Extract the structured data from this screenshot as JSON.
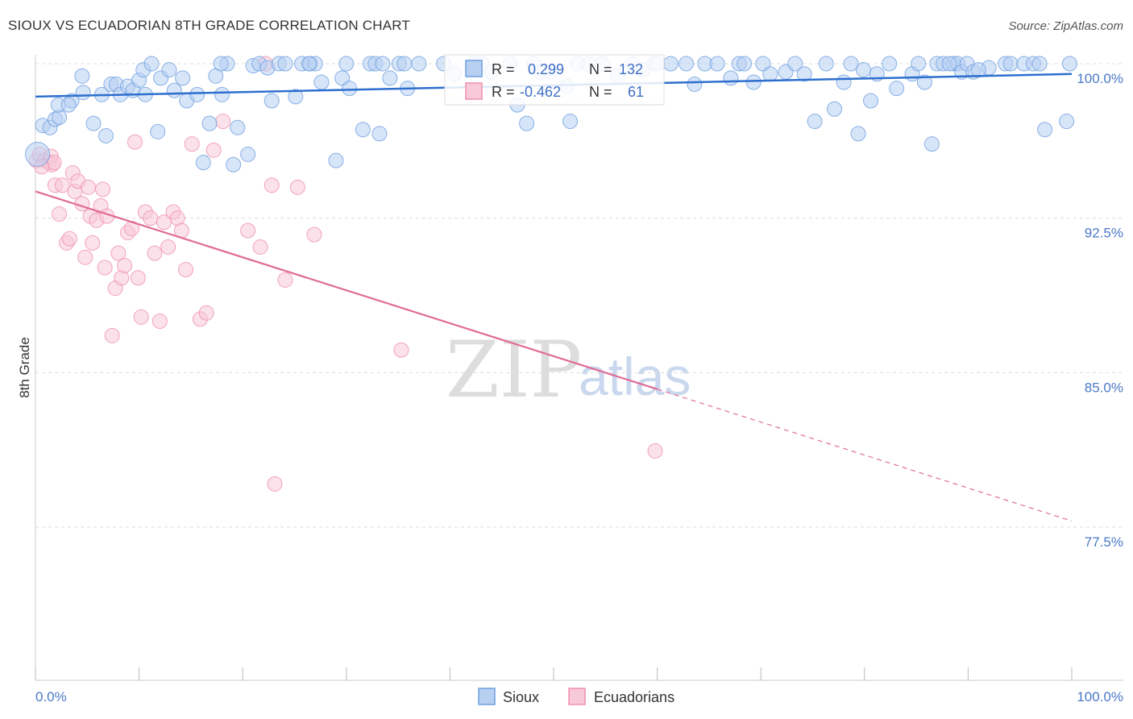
{
  "title": "SIOUX VS ECUADORIAN 8TH GRADE CORRELATION CHART",
  "source": "Source: ZipAtlas.com",
  "watermark": {
    "zip": "ZIP",
    "atlas": "atlas"
  },
  "colors": {
    "sioux": "#6f9fe0",
    "sioux_line": "#2e6fce",
    "ecuadorians": "#ef8fae",
    "ecuadorians_line": "#e06b97",
    "tick": "#4a78c7",
    "grid": "#dddddd"
  },
  "legend_box": {
    "rows": [
      {
        "r_label": "R =",
        "r_value": "0.299",
        "n_label": "N =",
        "n_value": "132"
      },
      {
        "r_label": "R =",
        "r_value": "-0.462",
        "n_label": "N =",
        "n_value": "61"
      }
    ]
  },
  "chart_data": {
    "type": "scatter",
    "title": "SIOUX VS ECUADORIAN 8TH GRADE CORRELATION CHART",
    "xlabel": "",
    "ylabel": "8th Grade",
    "xlim": [
      0,
      100
    ],
    "ylim": [
      70.0,
      101.0
    ],
    "x_tick_labels": [
      "0.0%",
      "100.0%"
    ],
    "y_ticks": [
      100.0,
      92.5,
      85.0,
      77.5
    ],
    "y_tick_labels": [
      "100.0%",
      "92.5%",
      "85.0%",
      "77.5%"
    ],
    "grid": true,
    "series": [
      {
        "name": "Sioux",
        "r": 0.299,
        "n": 132,
        "trend": {
          "x": [
            0,
            100
          ],
          "y": [
            98.4,
            99.5
          ],
          "dashed_from": null
        },
        "points": [
          [
            0.2,
            95.6
          ],
          [
            0.7,
            97.0
          ],
          [
            1.4,
            96.9
          ],
          [
            1.9,
            97.3
          ],
          [
            2.3,
            97.4
          ],
          [
            2.2,
            98.0
          ],
          [
            3.5,
            98.2
          ],
          [
            3.2,
            98.0
          ],
          [
            4.6,
            98.6
          ],
          [
            4.5,
            99.4
          ],
          [
            5.6,
            97.1
          ],
          [
            6.4,
            98.5
          ],
          [
            6.8,
            96.5
          ],
          [
            7.3,
            99.0
          ],
          [
            7.8,
            99.0
          ],
          [
            8.2,
            98.5
          ],
          [
            8.9,
            98.9
          ],
          [
            9.4,
            98.7
          ],
          [
            10.0,
            99.2
          ],
          [
            10.4,
            99.7
          ],
          [
            10.6,
            98.5
          ],
          [
            11.2,
            100.0
          ],
          [
            11.8,
            96.7
          ],
          [
            12.1,
            99.3
          ],
          [
            12.9,
            99.7
          ],
          [
            13.4,
            98.7
          ],
          [
            14.2,
            99.3
          ],
          [
            14.6,
            98.2
          ],
          [
            15.6,
            98.5
          ],
          [
            16.2,
            95.2
          ],
          [
            16.8,
            97.1
          ],
          [
            17.4,
            99.4
          ],
          [
            18.0,
            98.5
          ],
          [
            18.5,
            100.0
          ],
          [
            19.1,
            95.1
          ],
          [
            19.5,
            96.9
          ],
          [
            20.5,
            95.6
          ],
          [
            21.0,
            99.9
          ],
          [
            21.6,
            100.0
          ],
          [
            22.4,
            99.8
          ],
          [
            22.8,
            98.2
          ],
          [
            23.5,
            100.0
          ],
          [
            24.1,
            100.0
          ],
          [
            25.1,
            98.4
          ],
          [
            25.7,
            100.0
          ],
          [
            26.5,
            100.0
          ],
          [
            27.0,
            100.0
          ],
          [
            27.6,
            99.1
          ],
          [
            29.0,
            95.3
          ],
          [
            29.6,
            99.3
          ],
          [
            30.0,
            100.0
          ],
          [
            30.3,
            98.8
          ],
          [
            31.6,
            96.8
          ],
          [
            32.3,
            100.0
          ],
          [
            32.8,
            100.0
          ],
          [
            33.2,
            96.6
          ],
          [
            34.2,
            99.3
          ],
          [
            35.1,
            100.0
          ],
          [
            35.6,
            100.0
          ],
          [
            35.9,
            98.8
          ],
          [
            37.0,
            100.0
          ],
          [
            39.4,
            100.0
          ],
          [
            40.4,
            99.5
          ],
          [
            42.3,
            100.0
          ],
          [
            43.1,
            100.0
          ],
          [
            44.0,
            99.6
          ],
          [
            45.8,
            100.0
          ],
          [
            46.5,
            98.0
          ],
          [
            47.4,
            97.1
          ],
          [
            48.1,
            100.0
          ],
          [
            48.8,
            99.6
          ],
          [
            49.7,
            99.6
          ],
          [
            51.3,
            98.9
          ],
          [
            52.3,
            100.0
          ],
          [
            53.4,
            100.0
          ],
          [
            54.7,
            100.0
          ],
          [
            56.2,
            99.4
          ],
          [
            57.6,
            100.0
          ],
          [
            58.6,
            99.7
          ],
          [
            59.7,
            100.0
          ],
          [
            61.3,
            100.0
          ],
          [
            62.8,
            100.0
          ],
          [
            63.6,
            99.0
          ],
          [
            64.6,
            100.0
          ],
          [
            65.8,
            100.0
          ],
          [
            67.1,
            99.3
          ],
          [
            67.9,
            100.0
          ],
          [
            68.4,
            100.0
          ],
          [
            69.3,
            99.1
          ],
          [
            70.2,
            100.0
          ],
          [
            70.9,
            99.5
          ],
          [
            72.4,
            99.6
          ],
          [
            73.3,
            100.0
          ],
          [
            74.2,
            99.5
          ],
          [
            75.2,
            97.2
          ],
          [
            76.3,
            100.0
          ],
          [
            77.1,
            97.8
          ],
          [
            78.0,
            99.1
          ],
          [
            78.7,
            100.0
          ],
          [
            79.4,
            96.6
          ],
          [
            80.6,
            98.2
          ],
          [
            82.4,
            100.0
          ],
          [
            83.1,
            98.8
          ],
          [
            84.6,
            99.5
          ],
          [
            85.2,
            100.0
          ],
          [
            85.8,
            99.1
          ],
          [
            86.5,
            96.1
          ],
          [
            87.0,
            100.0
          ],
          [
            87.6,
            100.0
          ],
          [
            88.6,
            100.0
          ],
          [
            89.0,
            100.0
          ],
          [
            89.4,
            99.6
          ],
          [
            89.9,
            100.0
          ],
          [
            90.5,
            99.6
          ],
          [
            92.0,
            99.8
          ],
          [
            93.6,
            100.0
          ],
          [
            94.1,
            100.0
          ],
          [
            95.4,
            100.0
          ],
          [
            96.3,
            100.0
          ],
          [
            96.9,
            100.0
          ],
          [
            97.4,
            96.8
          ],
          [
            99.5,
            97.2
          ],
          [
            99.8,
            100.0
          ],
          [
            33.5,
            100.0
          ],
          [
            51.6,
            97.2
          ],
          [
            81.2,
            99.5
          ],
          [
            26.4,
            100.0
          ],
          [
            17.9,
            100.0
          ],
          [
            60.0,
            100.0
          ],
          [
            88.2,
            100.0
          ],
          [
            91.0,
            99.7
          ],
          [
            79.9,
            99.7
          ]
        ]
      },
      {
        "name": "Ecuadorians",
        "r": -0.462,
        "n": 61,
        "trend": {
          "x": [
            0,
            100
          ],
          "y": [
            93.8,
            77.8
          ],
          "dashed_from": 60
        },
        "points": [
          [
            0.1,
            95.3
          ],
          [
            0.4,
            95.6
          ],
          [
            0.9,
            95.3
          ],
          [
            1.3,
            95.2
          ],
          [
            1.5,
            95.5
          ],
          [
            1.6,
            95.1
          ],
          [
            1.8,
            95.2
          ],
          [
            1.9,
            94.1
          ],
          [
            2.3,
            92.7
          ],
          [
            2.6,
            94.1
          ],
          [
            3.0,
            91.3
          ],
          [
            3.3,
            91.5
          ],
          [
            3.6,
            94.7
          ],
          [
            3.8,
            93.8
          ],
          [
            4.1,
            94.3
          ],
          [
            4.5,
            93.2
          ],
          [
            4.8,
            90.6
          ],
          [
            5.1,
            94.0
          ],
          [
            5.3,
            92.6
          ],
          [
            5.5,
            91.3
          ],
          [
            5.9,
            92.4
          ],
          [
            6.3,
            93.1
          ],
          [
            6.5,
            93.9
          ],
          [
            6.7,
            90.1
          ],
          [
            6.9,
            92.6
          ],
          [
            7.4,
            86.8
          ],
          [
            7.7,
            89.1
          ],
          [
            8.0,
            90.8
          ],
          [
            8.3,
            89.6
          ],
          [
            8.6,
            90.2
          ],
          [
            8.9,
            91.8
          ],
          [
            9.3,
            92.0
          ],
          [
            9.6,
            96.2
          ],
          [
            9.9,
            89.6
          ],
          [
            10.2,
            87.7
          ],
          [
            10.6,
            92.8
          ],
          [
            11.1,
            92.5
          ],
          [
            11.5,
            90.8
          ],
          [
            12.0,
            87.5
          ],
          [
            12.4,
            92.3
          ],
          [
            12.8,
            91.1
          ],
          [
            13.3,
            92.8
          ],
          [
            13.7,
            92.5
          ],
          [
            14.1,
            91.9
          ],
          [
            14.5,
            90.0
          ],
          [
            15.1,
            96.1
          ],
          [
            15.9,
            87.6
          ],
          [
            16.5,
            87.9
          ],
          [
            17.2,
            95.8
          ],
          [
            18.1,
            97.2
          ],
          [
            20.5,
            91.9
          ],
          [
            21.7,
            91.1
          ],
          [
            22.2,
            100.0
          ],
          [
            22.8,
            94.1
          ],
          [
            23.1,
            79.6
          ],
          [
            24.1,
            89.5
          ],
          [
            25.3,
            94.0
          ],
          [
            26.9,
            91.7
          ],
          [
            35.3,
            86.1
          ],
          [
            59.8,
            81.2
          ],
          [
            0.6,
            95.0
          ]
        ]
      }
    ]
  },
  "series_legend": [
    {
      "label": "Sioux"
    },
    {
      "label": "Ecuadorians"
    }
  ]
}
